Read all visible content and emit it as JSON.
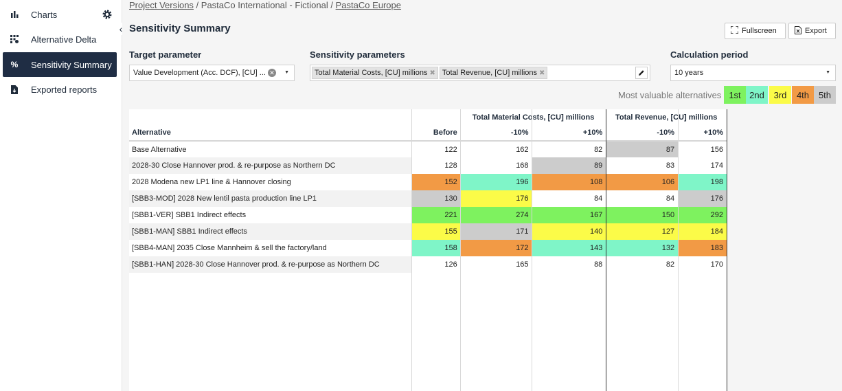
{
  "sidebar": {
    "items": [
      {
        "label": "Charts",
        "icon": "bar-chart-icon"
      },
      {
        "label": "Alternative Delta",
        "icon": "grid-icon"
      },
      {
        "label": "Sensitivity Summary",
        "icon": "percent-icon",
        "glyph": "%"
      },
      {
        "label": "Exported reports",
        "icon": "file-download-icon"
      }
    ]
  },
  "breadcrumb": {
    "link1": "Project Versions",
    "sep": " / ",
    "middle": "PastaCo International - Fictional",
    "link2": "PastaCo Europe"
  },
  "page": {
    "title": "Sensitivity Summary",
    "fullscreen_label": "Fullscreen",
    "export_label": "Export"
  },
  "target": {
    "label": "Target parameter",
    "value": "Value Development (Acc. DCF), [CU] ..."
  },
  "sensitivity": {
    "label": "Sensitivity parameters",
    "chips": [
      "Total Material Costs, [CU] millions",
      "Total Revenue, [CU] millions"
    ]
  },
  "period": {
    "label": "Calculation period",
    "value": "10 years"
  },
  "legend": {
    "label": "Most valuable alternatives",
    "ranks": [
      {
        "label": "1st",
        "color": "#7ef25f"
      },
      {
        "label": "2nd",
        "color": "#7ff5c8"
      },
      {
        "label": "3rd",
        "color": "#fbfb48"
      },
      {
        "label": "4th",
        "color": "#f29a45"
      },
      {
        "label": "5th",
        "color": "#cccccc"
      }
    ]
  },
  "table": {
    "col_alternative": "Alternative",
    "col_before": "Before",
    "group1": "Total Material Costs, [CU] millions",
    "group2": "Total Revenue, [CU] millions",
    "minus": "-10%",
    "plus": "+10%",
    "rows": [
      {
        "name": "Base Alternative",
        "values": [
          "122",
          "162",
          "82",
          "87",
          "156"
        ],
        "ranks": [
          0,
          0,
          0,
          5,
          0
        ]
      },
      {
        "name": "2028-30 Close Hannover prod. & re-purpose as Northern DC",
        "values": [
          "128",
          "168",
          "89",
          "83",
          "174"
        ],
        "ranks": [
          0,
          0,
          5,
          0,
          0
        ]
      },
      {
        "name": "2028 Modena new LP1 line & Hannover closing",
        "values": [
          "152",
          "196",
          "108",
          "106",
          "198"
        ],
        "ranks": [
          4,
          2,
          4,
          4,
          2
        ]
      },
      {
        "name": "[SBB3-MOD] 2028 New lentil pasta production line LP1",
        "values": [
          "130",
          "176",
          "84",
          "84",
          "176"
        ],
        "ranks": [
          5,
          3,
          0,
          0,
          5
        ]
      },
      {
        "name": "[SBB1-VER] SBB1 Indirect effects",
        "values": [
          "221",
          "274",
          "167",
          "150",
          "292"
        ],
        "ranks": [
          1,
          1,
          1,
          1,
          1
        ]
      },
      {
        "name": "[SBB1-MAN] SBB1 Indirect effects",
        "values": [
          "155",
          "171",
          "140",
          "127",
          "184"
        ],
        "ranks": [
          3,
          5,
          3,
          3,
          3
        ]
      },
      {
        "name": "[SBB4-MAN] 2035 Close Mannheim & sell the factory/land",
        "values": [
          "158",
          "172",
          "143",
          "132",
          "183"
        ],
        "ranks": [
          2,
          4,
          2,
          2,
          4
        ]
      },
      {
        "name": "[SBB1-HAN] 2028-30 Close Hannover prod. & re-purpose as Northern DC",
        "values": [
          "126",
          "165",
          "88",
          "82",
          "170"
        ],
        "ranks": [
          0,
          0,
          0,
          0,
          0
        ]
      }
    ]
  }
}
